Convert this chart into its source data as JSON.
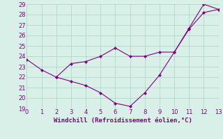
{
  "line1_x": [
    0,
    1,
    2,
    3,
    4,
    5,
    6,
    7,
    8,
    9,
    10,
    11,
    12,
    13
  ],
  "line1_y": [
    23.7,
    22.7,
    22.0,
    23.3,
    23.5,
    24.0,
    24.8,
    24.0,
    24.0,
    24.4,
    24.4,
    26.6,
    28.2,
    28.5
  ],
  "line2_x": [
    2,
    3,
    4,
    5,
    6,
    7,
    8,
    9,
    10,
    11,
    12,
    13
  ],
  "line2_y": [
    22.0,
    21.6,
    21.2,
    20.5,
    19.5,
    19.2,
    20.5,
    22.2,
    24.4,
    26.7,
    29.0,
    28.5
  ],
  "line_color": "#800080",
  "bg_color": "#d8f0e8",
  "grid_color": "#b0d8c8",
  "xlabel": "Windchill (Refroidissement éolien,°C)",
  "xlabel_color": "#800080",
  "tick_color": "#800080",
  "ylim": [
    19,
    29
  ],
  "xlim": [
    0,
    13
  ],
  "yticks": [
    19,
    20,
    21,
    22,
    23,
    24,
    25,
    26,
    27,
    28,
    29
  ],
  "xticks": [
    0,
    1,
    2,
    3,
    4,
    5,
    6,
    7,
    8,
    9,
    10,
    11,
    12,
    13
  ]
}
